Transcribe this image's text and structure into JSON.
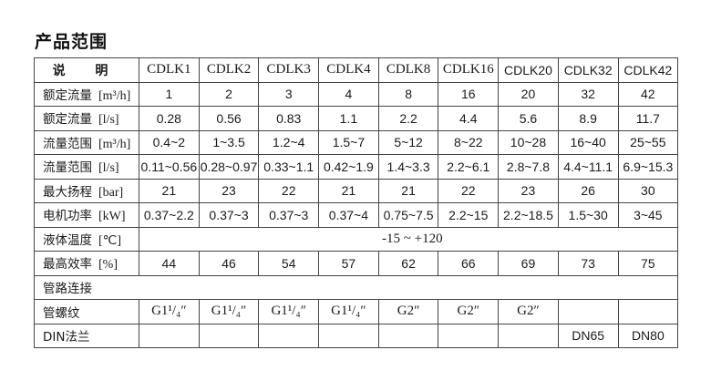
{
  "title": "产品范围",
  "header": {
    "label": "说 明",
    "models": [
      "CDLK1",
      "CDLK2",
      "CDLK3",
      "CDLK4",
      "CDLK8",
      "CDLK16",
      "CDLK20",
      "CDLK32",
      "CDLK42"
    ]
  },
  "rows": [
    {
      "label": "额定流量",
      "unit": "[m³/h]",
      "values": [
        "1",
        "2",
        "3",
        "4",
        "8",
        "16",
        "20",
        "32",
        "42"
      ]
    },
    {
      "label": "额定流量",
      "unit": "[l/s]",
      "values": [
        "0.28",
        "0.56",
        "0.83",
        "1.1",
        "2.2",
        "4.4",
        "5.6",
        "8.9",
        "11.7"
      ]
    },
    {
      "label": "流量范围",
      "unit": "[m³/h]",
      "values": [
        "0.4~2",
        "1~3.5",
        "1.2~4",
        "1.5~7",
        "5~12",
        "8~22",
        "10~28",
        "16~40",
        "25~55"
      ]
    },
    {
      "label": "流量范围",
      "unit": "[l/s]",
      "values": [
        "0.11~0.56",
        "0.28~0.97",
        "0.33~1.1",
        "0.42~1.9",
        "1.4~3.3",
        "2.2~6.1",
        "2.8~7.8",
        "4.4~11.1",
        "6.9~15.3"
      ]
    },
    {
      "label": "最大扬程",
      "unit": "[bar]",
      "values": [
        "21",
        "23",
        "22",
        "21",
        "21",
        "22",
        "23",
        "26",
        "30"
      ]
    },
    {
      "label": "电机功率",
      "unit": "[kW]",
      "values": [
        "0.37~2.2",
        "0.37~3",
        "0.37~3",
        "0.37~4",
        "0.75~7.5",
        "2.2~15",
        "2.2~18.5",
        "1.5~30",
        "3~45"
      ]
    }
  ],
  "temperature": {
    "label": "液体温度",
    "unit": "[℃]",
    "value": "-15 ~ +120"
  },
  "efficiency": {
    "label": "最高效率",
    "unit": "[%]",
    "values": [
      "44",
      "46",
      "54",
      "57",
      "62",
      "66",
      "69",
      "73",
      "75"
    ]
  },
  "pipe_connection": {
    "label": "管路连接"
  },
  "thread": {
    "label": "管螺纹",
    "values": [
      "G1¹/₄″",
      "G1¹/₄″",
      "G1¹/₄″",
      "G1¹/₄″",
      "G2″",
      "G2″",
      "G2″",
      "",
      ""
    ]
  },
  "din": {
    "label": "DIN法兰",
    "values": [
      "",
      "",
      "",
      "",
      "",
      "",
      "",
      "DN65",
      "DN80"
    ]
  }
}
